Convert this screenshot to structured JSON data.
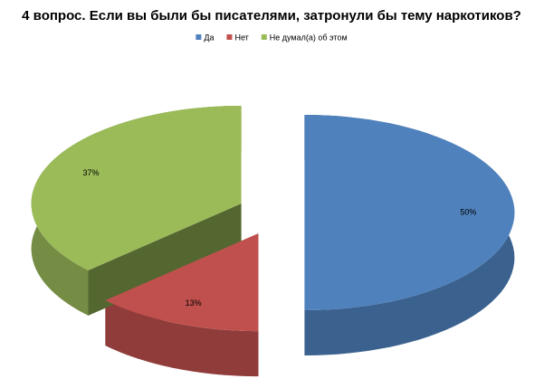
{
  "chart_data": {
    "type": "pie3d",
    "title": "4 вопрос. Если вы были бы писателями, затронули бы тему наркотиков?",
    "categories": [
      "Да",
      "Нет",
      "Не думал(а) об этом"
    ],
    "values": [
      50,
      13,
      37
    ],
    "value_labels": [
      "50%",
      "13%",
      "37%"
    ],
    "colors": [
      "#4f81bd",
      "#c0504d",
      "#9bbb59"
    ],
    "legend": "top"
  }
}
